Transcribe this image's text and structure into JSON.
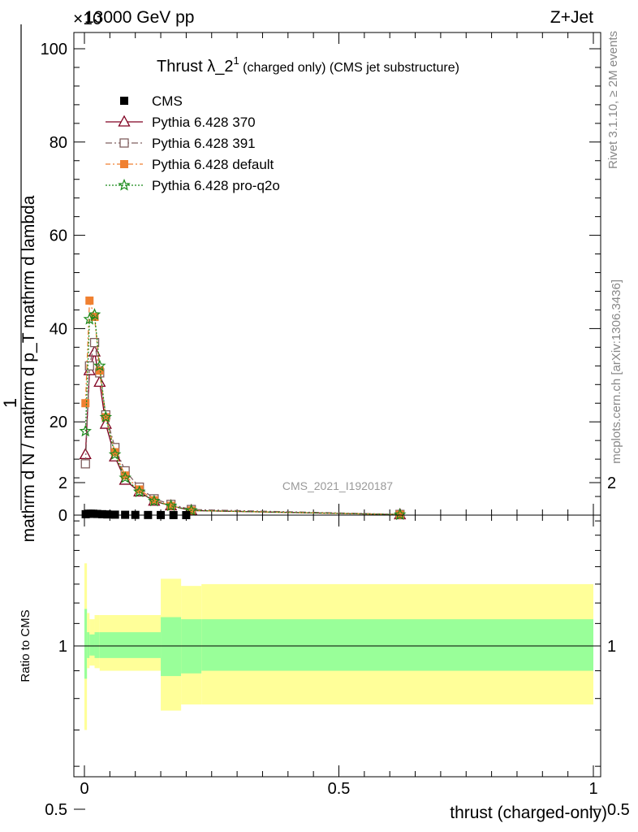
{
  "header": {
    "left": "13000 GeV pp",
    "right": "Z+Jet",
    "exponent": "×10"
  },
  "side_labels": {
    "rivet": "Rivet 3.1.10, ≥ 2M events",
    "mcplots": "mcplots.cern.ch [arXiv:1306.3436]"
  },
  "watermark": "CMS_2021_I1920187",
  "chart_data": [
    {
      "type": "line",
      "title": "Thrust λ_2",
      "title_superscript": "1",
      "title_suffix": " (charged only) (CMS jet substructure)",
      "xlabel": "thrust (charged-only)",
      "ylabel_numerator": "1",
      "ylabel_denominator": "mathrm d N / mathrm d p_T mathrm d lambda",
      "ylabel_top": "mathrm d",
      "ylabel_top_mid": "N",
      "ylabel_bottom": "mathrm d p",
      "ylabel_bottom_sub": "T",
      "ylabel_bottom_rest": " mathrm d lambda",
      "xlim": [
        -0.02,
        1.02
      ],
      "ylim": [
        0,
        105
      ],
      "y_exponent_note": "×10³ (partially hidden)",
      "yticks": [
        0,
        20,
        40,
        60,
        80,
        100
      ],
      "ytick_labels": [
        "0",
        "20",
        "40",
        "60",
        "80",
        "100"
      ],
      "legend_position": "top-left",
      "series": [
        {
          "name": "CMS",
          "color": "#000000",
          "marker": "square-filled",
          "x": [
            0.0025,
            0.0075,
            0.0125,
            0.0175,
            0.025,
            0.035,
            0.045,
            0.06,
            0.08,
            0.1,
            0.125,
            0.15,
            0.175,
            0.2
          ],
          "y": [
            0.2,
            0.3,
            0.3,
            0.3,
            0.25,
            0.2,
            0.15,
            0.1,
            0.07,
            0.05,
            0.03,
            0.02,
            0.01,
            0.005
          ]
        },
        {
          "name": "Pythia 6.428 370",
          "color": "#800020",
          "marker": "triangle-open",
          "dash": "",
          "x": [
            0.002,
            0.01,
            0.02,
            0.03,
            0.042,
            0.06,
            0.08,
            0.108,
            0.137,
            0.17,
            0.21,
            0.62
          ],
          "y": [
            13,
            31,
            35,
            28.5,
            19.5,
            12.5,
            7.5,
            5,
            3,
            2,
            1,
            0.1
          ]
        },
        {
          "name": "Pythia 6.428 391",
          "color": "#7f5f5f",
          "marker": "square-open",
          "dash": "8,3,2,3",
          "x": [
            0.002,
            0.01,
            0.02,
            0.03,
            0.042,
            0.06,
            0.08,
            0.108,
            0.137,
            0.17,
            0.21,
            0.62
          ],
          "y": [
            11,
            32,
            37,
            30.5,
            21.5,
            14.5,
            9.5,
            6,
            3.5,
            2.3,
            1.2,
            0.15
          ]
        },
        {
          "name": "Pythia 6.428 default",
          "color": "#f08030",
          "marker": "square-filled",
          "dash": "6,3,2,3",
          "x": [
            0.002,
            0.01,
            0.02,
            0.03,
            0.042,
            0.06,
            0.08,
            0.108,
            0.137,
            0.17,
            0.21,
            0.62
          ],
          "y": [
            24,
            46,
            42.5,
            31,
            21,
            13.5,
            8.5,
            5.5,
            3.2,
            2,
            1,
            0.1
          ]
        },
        {
          "name": "Pythia 6.428 pro-q2o",
          "color": "#1a8a1a",
          "marker": "star",
          "dash": "2,2",
          "x": [
            0.002,
            0.01,
            0.02,
            0.03,
            0.042,
            0.06,
            0.08,
            0.108,
            0.137,
            0.17,
            0.21,
            0.62
          ],
          "y": [
            18,
            42,
            43,
            32,
            21,
            13,
            8,
            5,
            3,
            2,
            1,
            0.1
          ]
        }
      ]
    },
    {
      "type": "area",
      "ylabel": "Ratio to CMS",
      "xlabel": "thrust (charged-only)",
      "xlim": [
        -0.02,
        1.02
      ],
      "ylim": [
        0.42,
        2.4
      ],
      "log_y": true,
      "yticks": [
        0.5,
        1,
        2
      ],
      "ytick_labels": [
        "0.5",
        "1",
        "2"
      ],
      "xticks": [
        0,
        0.5,
        1
      ],
      "xtick_labels": [
        "0",
        "0.5",
        "1"
      ],
      "reference_line": 1,
      "band_colors": {
        "inner": "#99ff99",
        "outer": "#ffff99"
      },
      "bands": [
        {
          "x0": 0.0,
          "x1": 0.005,
          "inner": [
            0.87,
            1.17
          ],
          "outer": [
            0.7,
            1.42
          ]
        },
        {
          "x0": 0.005,
          "x1": 0.01,
          "inner": [
            0.95,
            1.06
          ],
          "outer": [
            0.91,
            1.15
          ]
        },
        {
          "x0": 0.01,
          "x1": 0.02,
          "inner": [
            0.96,
            1.05
          ],
          "outer": [
            0.92,
            1.12
          ]
        },
        {
          "x0": 0.02,
          "x1": 0.03,
          "inner": [
            0.95,
            1.06
          ],
          "outer": [
            0.91,
            1.14
          ]
        },
        {
          "x0": 0.03,
          "x1": 0.15,
          "inner": [
            0.95,
            1.06
          ],
          "outer": [
            0.9,
            1.14
          ]
        },
        {
          "x0": 0.15,
          "x1": 0.19,
          "inner": [
            0.88,
            1.13
          ],
          "outer": [
            0.76,
            1.33
          ]
        },
        {
          "x0": 0.19,
          "x1": 0.23,
          "inner": [
            0.89,
            1.12
          ],
          "outer": [
            0.78,
            1.29
          ]
        },
        {
          "x0": 0.23,
          "x1": 1.0,
          "inner": [
            0.9,
            1.12
          ],
          "outer": [
            0.78,
            1.3
          ]
        }
      ]
    }
  ]
}
